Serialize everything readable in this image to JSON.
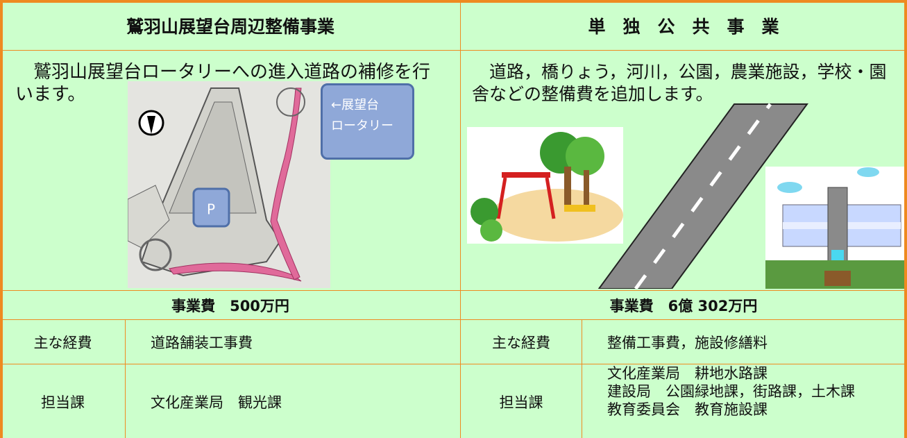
{
  "left": {
    "title": "鷲羽山展望台周辺整備事業",
    "description": "鷲羽山展望台ロータリーへの進入道路の補修を行います。",
    "map_labels": {
      "rotary": [
        "←展望台",
        "ロータリー"
      ],
      "parking": "P"
    },
    "cost": "事業費　500万円",
    "rows": [
      {
        "label": "主な経費",
        "value": "道路舗装工事費"
      },
      {
        "label": "担当課",
        "value": [
          "文化産業局　観光課"
        ]
      }
    ]
  },
  "right": {
    "title": "単　独　公　共　事　業",
    "description": "道路，橋りょう，河川，公園，農業施設，学校・園舎などの整備費を追加します。",
    "cost": "事業費　6億 302万円",
    "rows": [
      {
        "label": "主な経費",
        "value": "整備工事費，施設修繕料"
      },
      {
        "label": "担当課",
        "value": [
          "文化産業局　耕地水路課",
          "建設局　公園緑地課，街路課，土木課",
          "教育委員会　教育施設課"
        ]
      }
    ]
  }
}
